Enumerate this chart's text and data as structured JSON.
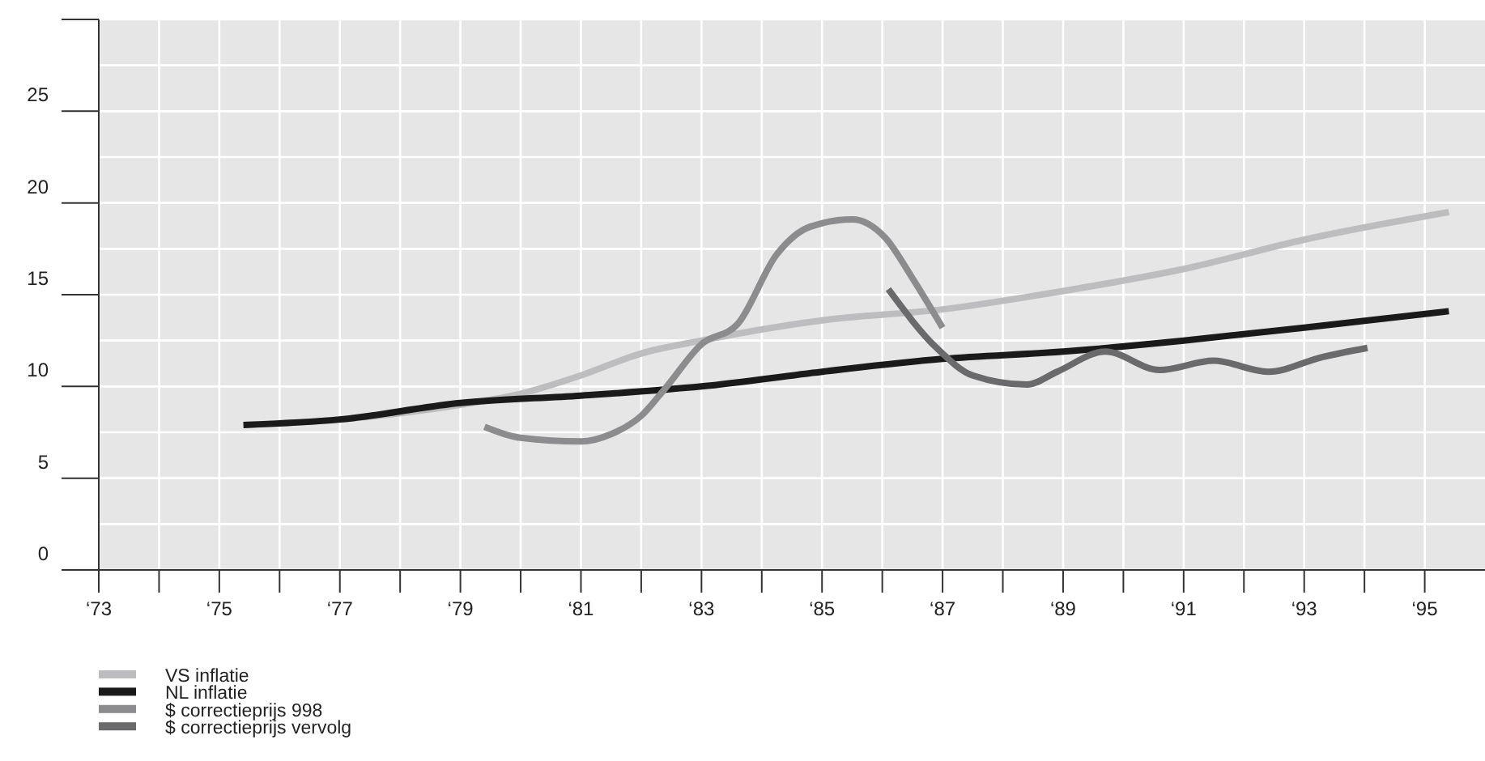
{
  "chart_data": {
    "type": "line",
    "xlim": [
      73,
      96
    ],
    "ylim": [
      0,
      30
    ],
    "xticks": [
      {
        "value": 73,
        "label": "‘73"
      },
      {
        "value": 74,
        "label": null
      },
      {
        "value": 75,
        "label": "‘75"
      },
      {
        "value": 76,
        "label": null
      },
      {
        "value": 77,
        "label": "‘77"
      },
      {
        "value": 78,
        "label": null
      },
      {
        "value": 79,
        "label": "‘79"
      },
      {
        "value": 80,
        "label": null
      },
      {
        "value": 81,
        "label": "‘81"
      },
      {
        "value": 82,
        "label": null
      },
      {
        "value": 83,
        "label": "‘83"
      },
      {
        "value": 84,
        "label": null
      },
      {
        "value": 85,
        "label": "‘85"
      },
      {
        "value": 86,
        "label": null
      },
      {
        "value": 87,
        "label": "‘87"
      },
      {
        "value": 88,
        "label": null
      },
      {
        "value": 89,
        "label": "‘89"
      },
      {
        "value": 90,
        "label": null
      },
      {
        "value": 91,
        "label": "‘91"
      },
      {
        "value": 92,
        "label": null
      },
      {
        "value": 93,
        "label": "‘93"
      },
      {
        "value": 94,
        "label": null
      },
      {
        "value": 95,
        "label": "‘95"
      }
    ],
    "yticks": [
      0,
      5,
      10,
      15,
      20,
      25,
      {
        "value": 30,
        "label": null
      }
    ],
    "grid": true,
    "legend": "bottom left",
    "marker": "none",
    "line_style": "solid",
    "series": [
      {
        "name": "VS inflatie",
        "color": "#bdbdbf",
        "x": [
          75.4,
          77,
          79,
          80,
          81,
          82,
          83,
          85,
          87,
          89,
          91,
          93,
          95.4
        ],
        "values": [
          7.9,
          8.2,
          9.0,
          9.6,
          10.6,
          11.8,
          12.5,
          13.6,
          14.2,
          15.2,
          16.4,
          18.0,
          19.5
        ]
      },
      {
        "name": "NL inflatie",
        "color": "#1a1a1a",
        "x": [
          75.4,
          77,
          79,
          81,
          83,
          85,
          87,
          89,
          91,
          93,
          95.4
        ],
        "values": [
          7.9,
          8.2,
          9.1,
          9.5,
          10.0,
          10.8,
          11.5,
          11.9,
          12.5,
          13.2,
          14.1
        ]
      },
      {
        "name": "$ correctieprijs 998",
        "color": "#8c8c8e",
        "x": [
          79.4,
          80,
          81,
          81.5,
          82,
          82.4,
          83,
          83.6,
          84.25,
          84.8,
          85.5,
          86.05,
          86.5,
          87.0
        ],
        "values": [
          7.8,
          7.2,
          7.0,
          7.4,
          8.4,
          9.9,
          12.3,
          13.4,
          17.2,
          18.7,
          19.1,
          18.1,
          15.9,
          13.2
        ]
      },
      {
        "name": "$ correctieprijs vervolg",
        "color": "#6a6a6c",
        "x": [
          86.1,
          86.9,
          87.5,
          88.4,
          88.9,
          89.7,
          90.6,
          91.5,
          92.4,
          93.3,
          94.05
        ],
        "values": [
          15.3,
          12.1,
          10.6,
          10.1,
          10.8,
          11.9,
          10.9,
          11.4,
          10.8,
          11.6,
          12.1
        ]
      }
    ]
  }
}
